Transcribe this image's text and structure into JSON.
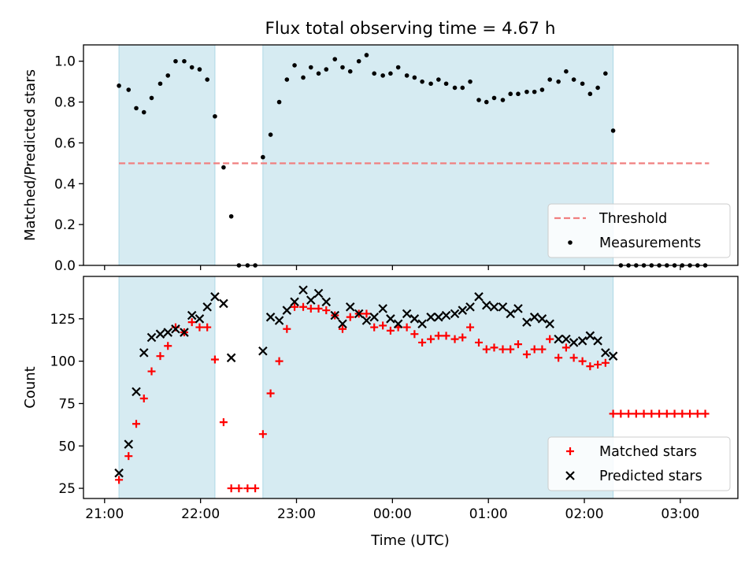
{
  "figure": {
    "title": "Flux total observing time = 4.67 h",
    "xlabel": "Time (UTC)"
  },
  "colors": {
    "shade": "#add8e6",
    "threshold": "#f08080",
    "measurement": "#000000",
    "matched": "#ff0000",
    "predicted": "#000000"
  },
  "chart_data": [
    {
      "type": "scatter",
      "ylabel": "Matched/Predicted stars",
      "x_unit": "hours since 21:00 UTC",
      "xlim": [
        -0.22,
        6.6
      ],
      "ylim": [
        0,
        1.08
      ],
      "yticks": [
        0.0,
        0.2,
        0.4,
        0.6,
        0.8,
        1.0
      ],
      "ytick_labels": [
        "0.0",
        "0.2",
        "0.4",
        "0.6",
        "0.8",
        "1.0"
      ],
      "xticks": [
        0,
        1,
        2,
        3,
        4,
        5,
        6
      ],
      "xtick_labels": [
        "21:00",
        "22:00",
        "23:00",
        "00:00",
        "01:00",
        "02:00",
        "03:00"
      ],
      "show_xtick_labels": false,
      "shaded_intervals": [
        [
          0.15,
          1.15
        ],
        [
          1.65,
          5.3
        ]
      ],
      "threshold": {
        "name": "Threshold",
        "y": 0.5,
        "x": [
          0.15,
          6.3
        ]
      },
      "legend_loc": "lower right",
      "legend": [
        "Threshold",
        "Measurements"
      ],
      "series": [
        {
          "name": "Measurements",
          "x": [
            0.15,
            0.25,
            0.33,
            0.41,
            0.49,
            0.58,
            0.66,
            0.74,
            0.83,
            0.91,
            0.99,
            1.07,
            1.15,
            1.24,
            1.32,
            1.4,
            1.49,
            1.57,
            1.65,
            1.73,
            1.82,
            1.9,
            1.98,
            2.07,
            2.15,
            2.23,
            2.31,
            2.4,
            2.48,
            2.56,
            2.65,
            2.73,
            2.81,
            2.9,
            2.98,
            3.06,
            3.15,
            3.23,
            3.31,
            3.4,
            3.48,
            3.56,
            3.65,
            3.73,
            3.81,
            3.9,
            3.98,
            4.06,
            4.15,
            4.23,
            4.31,
            4.4,
            4.48,
            4.56,
            4.64,
            4.73,
            4.81,
            4.89,
            4.98,
            5.06,
            5.14,
            5.22,
            5.3,
            5.38,
            5.46,
            5.54,
            5.62,
            5.7,
            5.78,
            5.86,
            5.94,
            6.02,
            6.1,
            6.18,
            6.26
          ],
          "y": [
            0.88,
            0.86,
            0.77,
            0.75,
            0.82,
            0.89,
            0.93,
            1.0,
            1.0,
            0.97,
            0.96,
            0.91,
            0.73,
            0.48,
            0.24,
            0.0,
            0.0,
            0.0,
            0.53,
            0.64,
            0.8,
            0.91,
            0.98,
            0.92,
            0.97,
            0.94,
            0.96,
            1.01,
            0.97,
            0.95,
            1.0,
            1.03,
            0.94,
            0.93,
            0.94,
            0.97,
            0.93,
            0.92,
            0.9,
            0.89,
            0.91,
            0.89,
            0.87,
            0.87,
            0.9,
            0.81,
            0.8,
            0.82,
            0.81,
            0.84,
            0.84,
            0.85,
            0.85,
            0.86,
            0.91,
            0.9,
            0.95,
            0.91,
            0.89,
            0.84,
            0.87,
            0.94,
            0.66,
            0.0,
            0.0,
            0.0,
            0.0,
            0.0,
            0.0,
            0.0,
            0.0,
            0.0,
            0.0,
            0.0,
            0.0
          ]
        }
      ]
    },
    {
      "type": "scatter",
      "ylabel": "Count",
      "x_unit": "hours since 21:00 UTC",
      "xlim": [
        -0.22,
        6.6
      ],
      "ylim": [
        19,
        150
      ],
      "yticks": [
        25,
        50,
        75,
        100,
        125
      ],
      "ytick_labels": [
        "25",
        "50",
        "75",
        "100",
        "125"
      ],
      "xticks": [
        0,
        1,
        2,
        3,
        4,
        5,
        6
      ],
      "xtick_labels": [
        "21:00",
        "22:00",
        "23:00",
        "00:00",
        "01:00",
        "02:00",
        "03:00"
      ],
      "show_xtick_labels": true,
      "shaded_intervals": [
        [
          0.15,
          1.15
        ],
        [
          1.65,
          5.3
        ]
      ],
      "legend_loc": "lower right",
      "legend": [
        "Matched stars",
        "Predicted stars"
      ],
      "series": [
        {
          "name": "Matched stars",
          "marker": "plus",
          "x": [
            0.15,
            0.25,
            0.33,
            0.41,
            0.49,
            0.58,
            0.66,
            0.74,
            0.83,
            0.91,
            0.99,
            1.07,
            1.15,
            1.24,
            1.32,
            1.4,
            1.49,
            1.57,
            1.65,
            1.73,
            1.82,
            1.9,
            1.98,
            2.07,
            2.15,
            2.23,
            2.31,
            2.4,
            2.48,
            2.56,
            2.65,
            2.73,
            2.81,
            2.9,
            2.98,
            3.06,
            3.15,
            3.23,
            3.31,
            3.4,
            3.48,
            3.56,
            3.65,
            3.73,
            3.81,
            3.9,
            3.98,
            4.06,
            4.15,
            4.23,
            4.31,
            4.4,
            4.48,
            4.56,
            4.64,
            4.73,
            4.81,
            4.89,
            4.98,
            5.06,
            5.14,
            5.22,
            5.3,
            5.38,
            5.46,
            5.54,
            5.62,
            5.7,
            5.78,
            5.86,
            5.94,
            6.02,
            6.1,
            6.18,
            6.26
          ],
          "y": [
            30,
            44,
            63,
            78,
            94,
            103,
            109,
            120,
            117,
            123,
            120,
            120,
            101,
            64,
            25,
            25,
            25,
            25,
            57,
            81,
            100,
            119,
            132,
            132,
            131,
            131,
            130,
            127,
            119,
            126,
            128,
            128,
            120,
            121,
            118,
            120,
            120,
            116,
            111,
            113,
            115,
            115,
            113,
            114,
            120,
            111,
            107,
            108,
            107,
            107,
            110,
            104,
            107,
            107,
            113,
            102,
            108,
            102,
            100,
            97,
            98,
            99,
            69,
            69,
            69,
            69,
            69,
            69,
            69,
            69,
            69,
            69,
            69,
            69,
            69
          ]
        },
        {
          "name": "Predicted stars",
          "marker": "x",
          "x": [
            0.15,
            0.25,
            0.33,
            0.41,
            0.49,
            0.58,
            0.66,
            0.74,
            0.83,
            0.91,
            0.99,
            1.07,
            1.15,
            1.24,
            1.32,
            1.65,
            1.73,
            1.82,
            1.9,
            1.98,
            2.07,
            2.15,
            2.23,
            2.31,
            2.4,
            2.48,
            2.56,
            2.65,
            2.73,
            2.81,
            2.9,
            2.98,
            3.06,
            3.15,
            3.23,
            3.31,
            3.4,
            3.48,
            3.56,
            3.65,
            3.73,
            3.81,
            3.9,
            3.98,
            4.06,
            4.15,
            4.23,
            4.31,
            4.4,
            4.48,
            4.56,
            4.64,
            4.73,
            4.81,
            4.89,
            4.98,
            5.06,
            5.14,
            5.22,
            5.3
          ],
          "y": [
            34,
            51,
            82,
            105,
            114,
            116,
            117,
            119,
            117,
            127,
            125,
            132,
            138,
            134,
            102,
            106,
            126,
            124,
            130,
            135,
            142,
            136,
            140,
            135,
            127,
            122,
            132,
            128,
            124,
            126,
            131,
            125,
            122,
            128,
            125,
            122,
            126,
            126,
            127,
            128,
            130,
            132,
            138,
            133,
            132,
            132,
            128,
            131,
            123,
            126,
            125,
            122,
            113,
            113,
            111,
            112,
            115,
            112,
            105,
            103
          ]
        }
      ]
    }
  ]
}
